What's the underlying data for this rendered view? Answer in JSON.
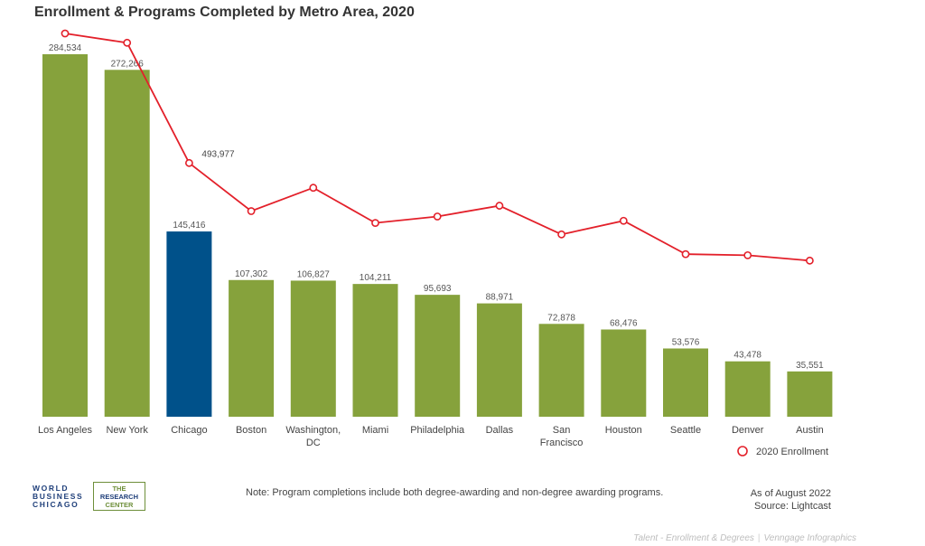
{
  "header": {
    "title": "Enrollment & Programs Completed by Metro Area, 2020"
  },
  "chart_data": {
    "type": "bar",
    "categories": [
      "Los Angeles",
      "New York",
      "Chicago",
      "Boston",
      "Washington, DC",
      "Miami",
      "Philadelphia",
      "Dallas",
      "San Francisco",
      "Houston",
      "Seattle",
      "Denver",
      "Austin"
    ],
    "bar_labels": [
      "284,534",
      "272,266",
      "145,416",
      "107,302",
      "106,827",
      "104,211",
      "95,693",
      "88,971",
      "72,878",
      "68,476",
      "53,576",
      "43,478",
      "35,551"
    ],
    "values": [
      284534,
      272266,
      145416,
      107302,
      106827,
      104211,
      95693,
      88971,
      72878,
      68476,
      53576,
      43478,
      35551
    ],
    "highlight_index": 2,
    "bar_color": "#86a23c",
    "highlight_color": "#00518a",
    "line_series": {
      "name": "2020 Enrollment",
      "color": "#e3202a",
      "values": [
        855000,
        829000,
        493977,
        360000,
        425000,
        327000,
        345000,
        375000,
        295000,
        333000,
        240000,
        237000,
        222000
      ],
      "labeled_index": 2,
      "label": "493,977"
    },
    "legend": {
      "label": "2020 Enrollment",
      "position": "bottom-right"
    }
  },
  "footer": {
    "logo_left": [
      "WORLD",
      "BUSINESS",
      "CHICAGO"
    ],
    "logo_right": [
      "THE",
      "RESEARCH",
      "CENTER"
    ],
    "note": "Note: Program completions include both degree-awarding and non-degree awarding programs.",
    "as_of": "As of August 2022",
    "source": "Source: Lightcast",
    "credit_left": "Talent - Enrollment & Degrees",
    "credit_right": "Venngage Infographics"
  }
}
